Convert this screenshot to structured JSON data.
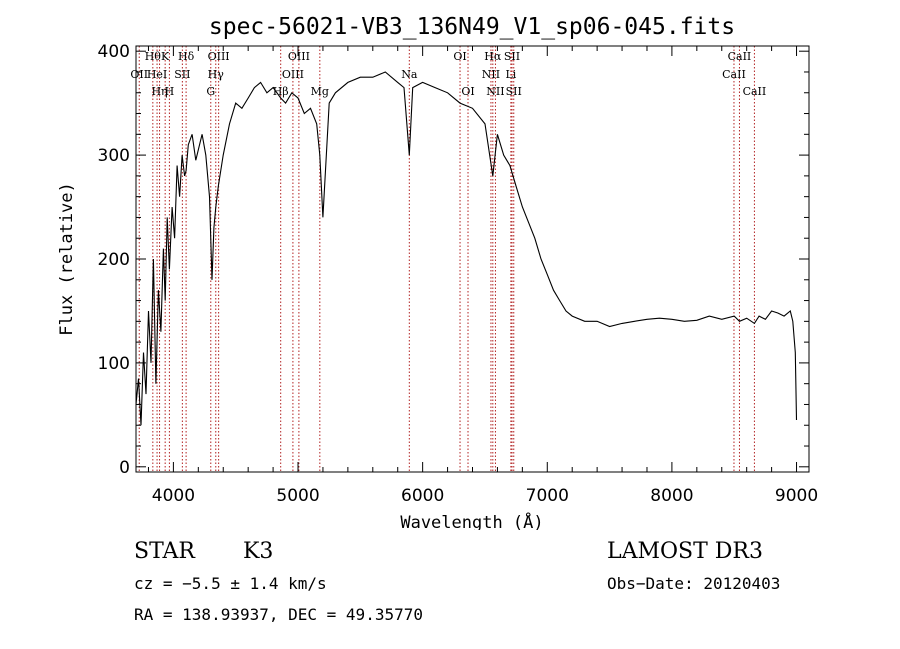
{
  "chart_data": {
    "type": "line",
    "title": "spec-56021-VB3_136N49_V1_sp06-045.fits",
    "xlabel": "Wavelength (Å)",
    "ylabel": "Flux (relative)",
    "xlim": [
      3700,
      9100
    ],
    "ylim": [
      -5,
      405
    ],
    "xticks": [
      "4000",
      "5000",
      "6000",
      "7000",
      "8000",
      "9000"
    ],
    "yticks": [
      "0",
      "100",
      "200",
      "300",
      "400"
    ],
    "series": [
      {
        "name": "flux",
        "x": [
          3700,
          3720,
          3740,
          3760,
          3780,
          3800,
          3820,
          3840,
          3860,
          3880,
          3900,
          3920,
          3934,
          3950,
          3968,
          3990,
          4010,
          4030,
          4050,
          4070,
          4090,
          4102,
          4120,
          4150,
          4180,
          4200,
          4230,
          4260,
          4290,
          4310,
          4325,
          4340,
          4360,
          4400,
          4450,
          4500,
          4550,
          4600,
          4650,
          4700,
          4750,
          4800,
          4861,
          4900,
          4950,
          5000,
          5050,
          5100,
          5150,
          5175,
          5200,
          5250,
          5300,
          5400,
          5500,
          5600,
          5700,
          5800,
          5850,
          5893,
          5920,
          6000,
          6100,
          6200,
          6300,
          6400,
          6500,
          6563,
          6600,
          6650,
          6700,
          6750,
          6800,
          6850,
          6900,
          6950,
          7000,
          7050,
          7100,
          7150,
          7200,
          7300,
          7400,
          7500,
          7600,
          7700,
          7800,
          7900,
          8000,
          8100,
          8200,
          8300,
          8400,
          8500,
          8542,
          8600,
          8662,
          8700,
          8750,
          8800,
          8850,
          8900,
          8950,
          8970,
          8990,
          9000
        ],
        "y": [
          60,
          85,
          40,
          110,
          70,
          150,
          100,
          200,
          80,
          170,
          130,
          210,
          160,
          240,
          190,
          250,
          220,
          290,
          260,
          300,
          280,
          285,
          310,
          320,
          295,
          305,
          320,
          300,
          260,
          180,
          230,
          250,
          270,
          300,
          330,
          350,
          345,
          355,
          365,
          370,
          360,
          365,
          355,
          350,
          360,
          355,
          340,
          345,
          330,
          300,
          240,
          350,
          360,
          370,
          375,
          375,
          380,
          370,
          365,
          300,
          365,
          370,
          365,
          360,
          350,
          345,
          330,
          280,
          320,
          300,
          290,
          270,
          250,
          235,
          220,
          200,
          185,
          170,
          160,
          150,
          145,
          140,
          140,
          135,
          138,
          140,
          142,
          143,
          142,
          140,
          141,
          145,
          142,
          145,
          140,
          143,
          138,
          145,
          142,
          150,
          148,
          145,
          150,
          140,
          110,
          45
        ]
      }
    ],
    "line_markers": [
      {
        "x": 3835,
        "label": "Hθ",
        "row": 0
      },
      {
        "x": 3889,
        "label": "Hη",
        "row": 2
      },
      {
        "x": 3934,
        "label": "K",
        "row": 0
      },
      {
        "x": 3968,
        "label": "H",
        "row": 2
      },
      {
        "x": 3726,
        "label": "OII",
        "row": 1
      },
      {
        "x": 3869,
        "label": "HeI",
        "row": 1
      },
      {
        "x": 4072,
        "label": "SII",
        "row": 1
      },
      {
        "x": 4102,
        "label": "Hδ",
        "row": 0
      },
      {
        "x": 4300,
        "label": "G",
        "row": 2
      },
      {
        "x": 4340,
        "label": "Hγ",
        "row": 1
      },
      {
        "x": 4363,
        "label": "OIII",
        "row": 0
      },
      {
        "x": 4861,
        "label": "Hβ",
        "row": 2
      },
      {
        "x": 4959,
        "label": "OIII",
        "row": 1
      },
      {
        "x": 5007,
        "label": "OIII",
        "row": 0
      },
      {
        "x": 5175,
        "label": "Mg",
        "row": 2
      },
      {
        "x": 5893,
        "label": "Na",
        "row": 1
      },
      {
        "x": 6300,
        "label": "OI",
        "row": 0
      },
      {
        "x": 6364,
        "label": "OI",
        "row": 2
      },
      {
        "x": 6548,
        "label": "NII",
        "row": 1
      },
      {
        "x": 6563,
        "label": "Hα",
        "row": 0
      },
      {
        "x": 6584,
        "label": "NII",
        "row": 2
      },
      {
        "x": 6708,
        "label": "Li",
        "row": 1
      },
      {
        "x": 6717,
        "label": "SII",
        "row": 0
      },
      {
        "x": 6731,
        "label": "SII",
        "row": 2
      },
      {
        "x": 8498,
        "label": "CaII",
        "row": 1
      },
      {
        "x": 8542,
        "label": "CaII",
        "row": 0
      },
      {
        "x": 8662,
        "label": "CaII",
        "row": 2
      }
    ]
  },
  "info": {
    "class": "STAR",
    "subclass": "K3",
    "survey": "LAMOST DR3",
    "cz": "cz = −5.5 ± 1.4 km/s",
    "obs_date": "Obs−Date: 20120403",
    "coords": "RA = 138.93937, DEC =  49.35770"
  },
  "colors": {
    "marker": "#b22222",
    "line": "#000000"
  }
}
